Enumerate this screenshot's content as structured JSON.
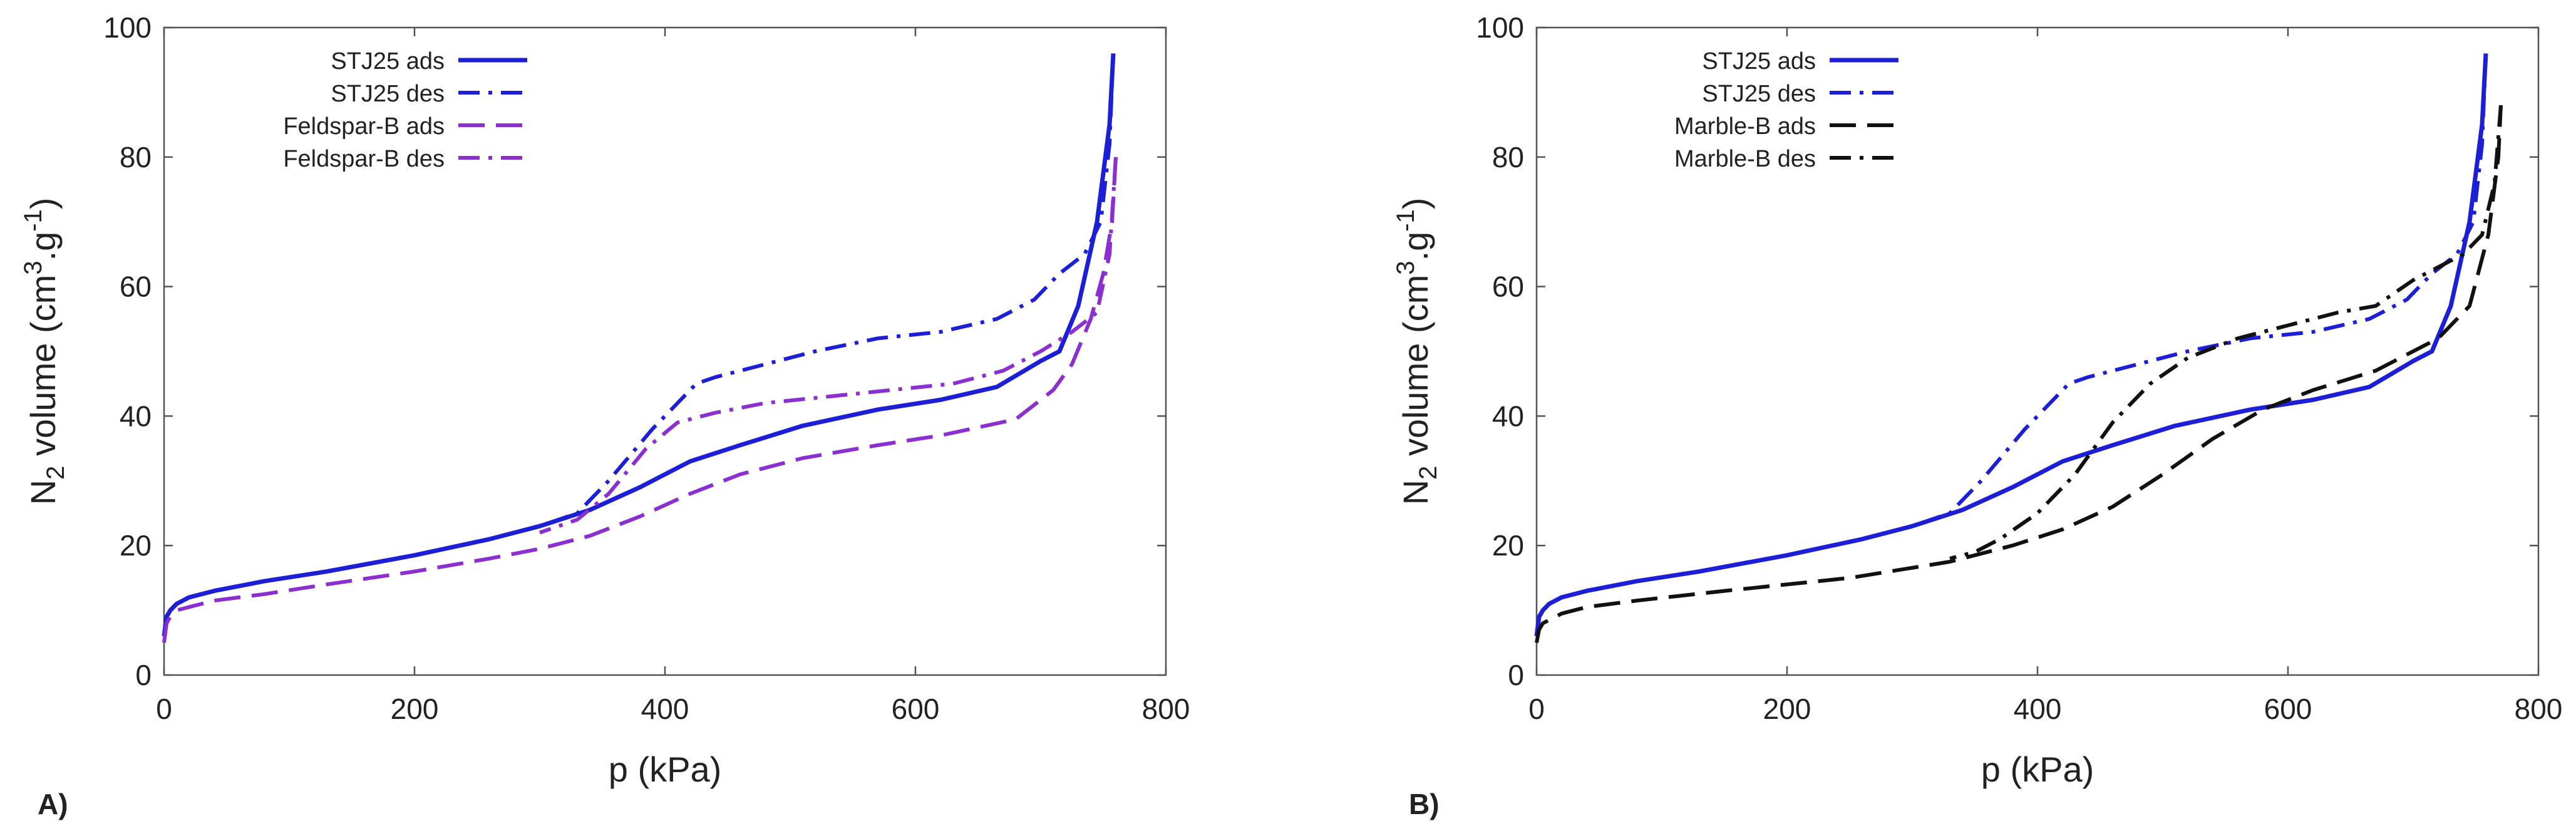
{
  "chart_data": [
    {
      "type": "line",
      "panel_label": "A)",
      "title": "",
      "xlabel": "p (kPa)",
      "ylabel": {
        "main": "N",
        "sub": "2",
        "text": " volume (cm",
        "sup1": "3",
        "mid": ".g",
        "sup2": "-1",
        "end": ")"
      },
      "xlim": [
        0,
        800
      ],
      "ylim": [
        0,
        100
      ],
      "xticks": [
        0,
        200,
        400,
        600,
        800
      ],
      "yticks": [
        0,
        20,
        40,
        60,
        80,
        100
      ],
      "grid": false,
      "legend": "top-left",
      "series": [
        {
          "name": "STJ25 ads",
          "color": "#1c1fd6",
          "dash": "solid",
          "width": 7,
          "x": [
            0,
            2,
            5,
            10,
            20,
            40,
            80,
            130,
            200,
            260,
            300,
            340,
            380,
            420,
            460,
            510,
            570,
            620,
            665,
            700,
            715,
            730,
            745,
            755,
            758
          ],
          "y": [
            6,
            9,
            10,
            11,
            12,
            13,
            14.5,
            16,
            18.5,
            21,
            23,
            25.5,
            29,
            33,
            35.5,
            38.5,
            41,
            42.5,
            44.5,
            48.5,
            50,
            57,
            70,
            85,
            96
          ]
        },
        {
          "name": "STJ25 des",
          "color": "#1c1fd6",
          "dash": "dashdot",
          "width": 6,
          "x": [
            758,
            755,
            748,
            735,
            715,
            695,
            665,
            620,
            570,
            520,
            480,
            440,
            425,
            390,
            355,
            330,
            300
          ],
          "y": [
            96,
            82,
            70,
            65,
            62,
            58,
            55,
            53,
            52,
            50,
            48,
            46,
            45,
            38,
            30,
            25,
            23
          ]
        },
        {
          "name": "Feldspar-B ads",
          "color": "#8b2fd0",
          "dash": "dashed",
          "width": 6,
          "x": [
            0,
            2,
            5,
            10,
            20,
            40,
            80,
            130,
            200,
            260,
            300,
            340,
            380,
            420,
            460,
            510,
            570,
            620,
            680,
            710,
            725,
            740,
            750,
            757,
            760
          ],
          "y": [
            5,
            8,
            9,
            10,
            10.5,
            11.5,
            12.5,
            14,
            16,
            18,
            19.5,
            21.5,
            24.5,
            28,
            31,
            33.5,
            35.5,
            37,
            39.5,
            44,
            48,
            55,
            62,
            70,
            80
          ]
        },
        {
          "name": "Feldspar-B des",
          "color": "#8b2fd0",
          "dash": "dashdot",
          "width": 6,
          "x": [
            760,
            755,
            745,
            725,
            700,
            670,
            630,
            580,
            530,
            480,
            440,
            410,
            385,
            355,
            330,
            300
          ],
          "y": [
            80,
            65,
            56,
            53,
            50,
            47,
            45,
            44,
            43,
            42,
            40.5,
            39,
            35,
            28,
            24,
            22
          ]
        }
      ]
    },
    {
      "type": "line",
      "panel_label": "B)",
      "title": "",
      "xlabel": "p (kPa)",
      "ylabel": {
        "main": "N",
        "sub": "2",
        "text": " volume (cm",
        "sup1": "3",
        "mid": ".g",
        "sup2": "-1",
        "end": ")"
      },
      "xlim": [
        0,
        800
      ],
      "ylim": [
        0,
        100
      ],
      "xticks": [
        0,
        200,
        400,
        600,
        800
      ],
      "yticks": [
        0,
        20,
        40,
        60,
        80,
        100
      ],
      "grid": false,
      "legend": "top-left",
      "series": [
        {
          "name": "STJ25 ads",
          "color": "#1c1fd6",
          "dash": "solid",
          "width": 7,
          "x": [
            0,
            2,
            5,
            10,
            20,
            40,
            80,
            130,
            200,
            260,
            300,
            340,
            380,
            420,
            460,
            510,
            570,
            620,
            665,
            700,
            715,
            730,
            745,
            755,
            758
          ],
          "y": [
            6,
            9,
            10,
            11,
            12,
            13,
            14.5,
            16,
            18.5,
            21,
            23,
            25.5,
            29,
            33,
            35.5,
            38.5,
            41,
            42.5,
            44.5,
            48.5,
            50,
            57,
            70,
            85,
            96
          ]
        },
        {
          "name": "STJ25 des",
          "color": "#1c1fd6",
          "dash": "dashdot",
          "width": 6,
          "x": [
            758,
            755,
            748,
            735,
            715,
            695,
            665,
            620,
            570,
            520,
            480,
            440,
            425,
            390,
            355,
            330,
            300
          ],
          "y": [
            96,
            82,
            70,
            65,
            62,
            58,
            55,
            53,
            52,
            50,
            48,
            46,
            45,
            38,
            30,
            25,
            23
          ]
        },
        {
          "name": "Marble-B ads",
          "color": "#111111",
          "dash": "dashed",
          "width": 6,
          "x": [
            0,
            2,
            5,
            10,
            20,
            40,
            80,
            150,
            250,
            330,
            380,
            420,
            460,
            500,
            540,
            580,
            620,
            670,
            720,
            745,
            760,
            768,
            770
          ],
          "y": [
            5,
            7,
            8,
            8.5,
            9.5,
            10.5,
            11.5,
            13,
            15,
            17.5,
            20,
            22.5,
            26,
            31,
            36.5,
            41,
            44,
            47,
            52,
            57,
            68,
            80,
            88
          ]
        },
        {
          "name": "Marble-B des",
          "color": "#111111",
          "dash": "dashdot",
          "width": 6,
          "x": [
            770,
            765,
            755,
            740,
            720,
            700,
            670,
            640,
            600,
            560,
            520,
            490,
            460,
            430,
            400,
            370,
            350,
            330
          ],
          "y": [
            88,
            76,
            68,
            65,
            63,
            61,
            57,
            56,
            54,
            52,
            49,
            45,
            39,
            31,
            25,
            21,
            19,
            18
          ]
        }
      ]
    }
  ]
}
